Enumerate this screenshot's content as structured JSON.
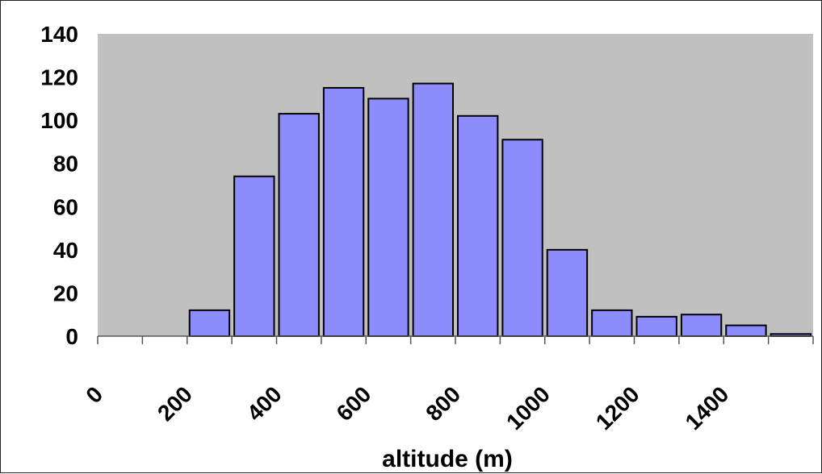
{
  "chart_data": {
    "type": "bar",
    "xlabel": "altitude (m)",
    "ylabel": "",
    "ylim": [
      0,
      140
    ],
    "xlim": [
      0,
      1600
    ],
    "bin_width": 100,
    "y_ticks": [
      "0",
      "20",
      "40",
      "60",
      "80",
      "100",
      "120",
      "140"
    ],
    "x_tick_labels": [
      "0",
      "200",
      "400",
      "600",
      "800",
      "1000",
      "1200",
      "1400"
    ],
    "bins": [
      {
        "start": 0,
        "value": 0
      },
      {
        "start": 100,
        "value": 0
      },
      {
        "start": 200,
        "value": 12
      },
      {
        "start": 300,
        "value": 74
      },
      {
        "start": 400,
        "value": 103
      },
      {
        "start": 500,
        "value": 115
      },
      {
        "start": 600,
        "value": 110
      },
      {
        "start": 700,
        "value": 117
      },
      {
        "start": 800,
        "value": 102
      },
      {
        "start": 900,
        "value": 91
      },
      {
        "start": 1000,
        "value": 40
      },
      {
        "start": 1100,
        "value": 12
      },
      {
        "start": 1200,
        "value": 9
      },
      {
        "start": 1300,
        "value": 10
      },
      {
        "start": 1400,
        "value": 5
      },
      {
        "start": 1500,
        "value": 1
      }
    ],
    "grid": false,
    "legend": "none",
    "colors": {
      "plot_background": "#c0c0c0",
      "bar_fill": "#8c8cff",
      "bar_stroke": "#000000"
    }
  }
}
